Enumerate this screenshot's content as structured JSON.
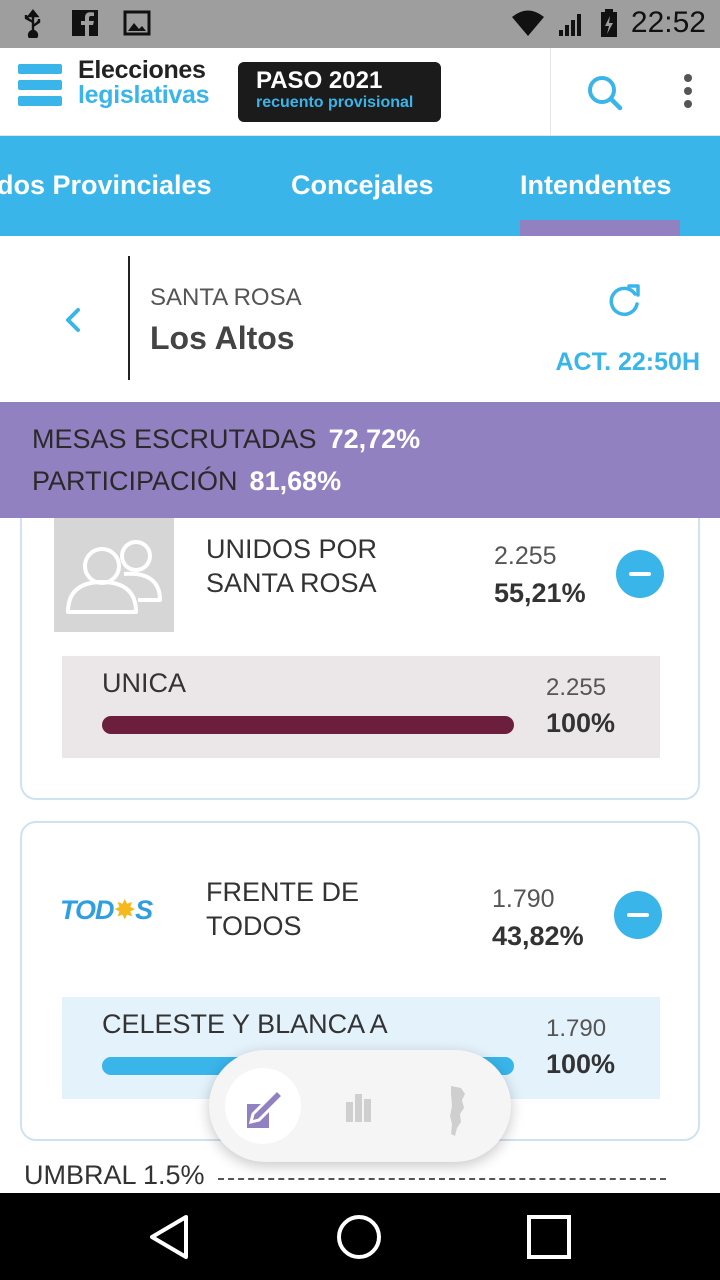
{
  "status_bar": {
    "time": "22:52",
    "left_icons": [
      "usb-icon",
      "facebook-icon",
      "image-icon"
    ],
    "right_icons": [
      "wifi-icon",
      "signal-icon",
      "battery-icon"
    ]
  },
  "header": {
    "logo_line1": "Elecciones",
    "logo_line2": "legislativas",
    "badge_title": "PASO 2021",
    "badge_subtitle": "recuento provisional"
  },
  "tabs": [
    {
      "label": "dos Provinciales"
    },
    {
      "label": "Concejales"
    },
    {
      "label": "Intendentes",
      "active": true
    }
  ],
  "location": {
    "province": "SANTA ROSA",
    "name": "Los Altos",
    "updated": "ACT. 22:50H"
  },
  "stats": {
    "mesas_label": "MESAS ESCRUTADAS",
    "mesas_value": "72,72%",
    "participacion_label": "PARTICIPACIÓN",
    "participacion_value": "81,68%"
  },
  "parties": [
    {
      "name_line1": "UNIDOS POR",
      "name_line2": "SANTA ROSA",
      "votes": "2.255",
      "pct": "55,21%",
      "lists": [
        {
          "name": "UNICA",
          "votes": "2.255",
          "pct": "100%",
          "fill": 1.0,
          "color": "#6b1f3d",
          "bg": "#ebe6e8"
        }
      ]
    },
    {
      "logo_text_a": "TOD",
      "logo_text_sun": "✸",
      "logo_text_b": "S",
      "name_line1": "FRENTE DE",
      "name_line2": "TODOS",
      "votes": "1.790",
      "pct": "43,82%",
      "lists": [
        {
          "name": "CELESTE Y BLANCA A",
          "votes": "1.790",
          "pct": "100%",
          "fill": 1.0,
          "color": "#39b5ea",
          "bg": "#e3f2fb"
        }
      ]
    }
  ],
  "umbral": "UMBRAL 1.5%",
  "colors": {
    "accent": "#39b5ea",
    "purple": "#9281c1"
  }
}
